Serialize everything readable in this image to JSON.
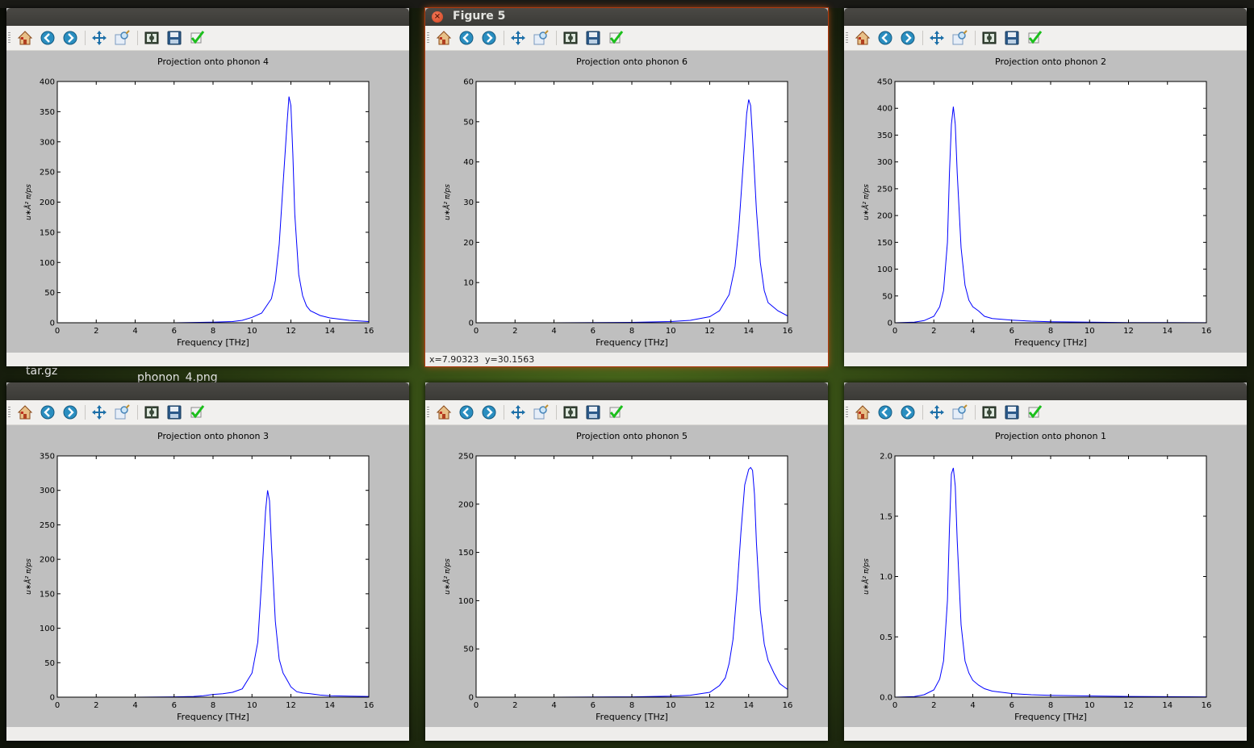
{
  "background": {
    "snippets": [
      "tar.gz",
      "phonon_4.png"
    ]
  },
  "icons": [
    "home-icon",
    "back-icon",
    "forward-icon",
    "pan-icon",
    "zoom-icon",
    "configure-subplots-icon",
    "save-icon",
    "edit-icon"
  ],
  "windows": [
    {
      "id": "w4",
      "title": "",
      "status_x": "",
      "status_y": "",
      "active": false
    },
    {
      "id": "w6",
      "title": "Figure 5",
      "status_x": "x=7.90323",
      "status_y": "y=30.1563",
      "active": true
    },
    {
      "id": "w2",
      "title": "",
      "status_x": "",
      "status_y": "",
      "active": false
    },
    {
      "id": "w3",
      "title": "",
      "status_x": "",
      "status_y": "",
      "active": false
    },
    {
      "id": "w5",
      "title": "",
      "status_x": "",
      "status_y": "",
      "active": false
    },
    {
      "id": "w1",
      "title": "",
      "status_x": "",
      "status_y": "",
      "active": false
    }
  ],
  "chart_data": [
    {
      "type": "line",
      "title": "Projection onto phonon 4",
      "xlabel": "Frequency [THz]",
      "ylabel": "u∗Å² π/ps",
      "xlim": [
        0,
        16
      ],
      "ylim": [
        0,
        400
      ],
      "xticks": [
        0,
        2,
        4,
        6,
        8,
        10,
        12,
        14,
        16
      ],
      "yticks": [
        0,
        50,
        100,
        150,
        200,
        250,
        300,
        350,
        400
      ],
      "ytick_labels": [
        "0",
        "50",
        "100",
        "150",
        "200",
        "250",
        "300",
        "350",
        "400"
      ],
      "color": "#0000ff",
      "x": [
        0,
        2,
        4,
        6,
        7,
        8,
        9,
        9.5,
        10,
        10.5,
        11,
        11.2,
        11.4,
        11.6,
        11.8,
        11.9,
        12,
        12.1,
        12.2,
        12.4,
        12.6,
        12.8,
        13,
        13.5,
        14,
        15,
        16
      ],
      "y": [
        0,
        0,
        0,
        0,
        0.5,
        1,
        2,
        4,
        9,
        16,
        40,
        70,
        130,
        230,
        330,
        375,
        360,
        280,
        180,
        80,
        45,
        28,
        20,
        12,
        8,
        4,
        2
      ]
    },
    {
      "type": "line",
      "title": "Projection onto phonon 6",
      "xlabel": "Frequency [THz]",
      "ylabel": "u∗Å² π/ps",
      "xlim": [
        0,
        16
      ],
      "ylim": [
        0,
        60
      ],
      "xticks": [
        0,
        2,
        4,
        6,
        8,
        10,
        12,
        14,
        16
      ],
      "yticks": [
        0,
        10,
        20,
        30,
        40,
        50,
        60
      ],
      "ytick_labels": [
        "0",
        "10",
        "20",
        "30",
        "40",
        "50",
        "60"
      ],
      "color": "#0000ff",
      "x": [
        0,
        4,
        8,
        10,
        11,
        12,
        12.5,
        13,
        13.3,
        13.5,
        13.7,
        13.9,
        14,
        14.1,
        14.2,
        14.4,
        14.6,
        14.8,
        15,
        15.5,
        16
      ],
      "y": [
        0,
        0,
        0.1,
        0.3,
        0.6,
        1.5,
        3,
        7,
        14,
        24,
        38,
        52,
        55.5,
        54,
        46,
        28,
        15,
        8,
        5,
        3,
        1.7
      ]
    },
    {
      "type": "line",
      "title": "Projection onto phonon 2",
      "xlabel": "Frequency [THz]",
      "ylabel": "u∗Å² π/ps",
      "xlim": [
        0,
        16
      ],
      "ylim": [
        0,
        450
      ],
      "xticks": [
        0,
        2,
        4,
        6,
        8,
        10,
        12,
        14,
        16
      ],
      "yticks": [
        0,
        50,
        100,
        150,
        200,
        250,
        300,
        350,
        400,
        450
      ],
      "ytick_labels": [
        "0",
        "50",
        "100",
        "150",
        "200",
        "250",
        "300",
        "350",
        "400",
        "450"
      ],
      "color": "#0000ff",
      "x": [
        0,
        1,
        1.5,
        2,
        2.3,
        2.5,
        2.7,
        2.8,
        2.9,
        3,
        3.1,
        3.2,
        3.4,
        3.6,
        3.8,
        4,
        4.3,
        4.6,
        5,
        6,
        7,
        8,
        10,
        12,
        14,
        16
      ],
      "y": [
        0,
        1,
        4,
        12,
        30,
        60,
        150,
        280,
        370,
        403,
        370,
        280,
        140,
        70,
        42,
        30,
        22,
        12,
        8,
        5,
        3,
        2,
        1,
        0.5,
        0.3,
        0.2
      ]
    },
    {
      "type": "line",
      "title": "Projection onto phonon 3",
      "xlabel": "Frequency [THz]",
      "ylabel": "u∗Å² π/ps",
      "xlim": [
        0,
        16
      ],
      "ylim": [
        0,
        350
      ],
      "xticks": [
        0,
        2,
        4,
        6,
        8,
        10,
        12,
        14,
        16
      ],
      "yticks": [
        0,
        50,
        100,
        150,
        200,
        250,
        300,
        350
      ],
      "ytick_labels": [
        "0",
        "50",
        "100",
        "150",
        "200",
        "250",
        "300",
        "350"
      ],
      "color": "#0000ff",
      "x": [
        0,
        4,
        6,
        7,
        7.5,
        8,
        8.5,
        9,
        9.5,
        10,
        10.3,
        10.5,
        10.7,
        10.8,
        10.9,
        11,
        11.2,
        11.4,
        11.6,
        11.8,
        12,
        12.3,
        12.6,
        13,
        13.5,
        14,
        15,
        16
      ],
      "y": [
        0,
        0,
        0.5,
        1,
        2,
        4,
        5,
        7,
        12,
        35,
        80,
        170,
        270,
        300,
        285,
        220,
        110,
        55,
        35,
        25,
        15,
        8,
        6,
        5,
        3,
        2,
        1.5,
        1
      ]
    },
    {
      "type": "line",
      "title": "Projection onto phonon 5",
      "xlabel": "Frequency [THz]",
      "ylabel": "u∗Å² π/ps",
      "xlim": [
        0,
        16
      ],
      "ylim": [
        0,
        250
      ],
      "xticks": [
        0,
        2,
        4,
        6,
        8,
        10,
        12,
        14,
        16
      ],
      "yticks": [
        0,
        50,
        100,
        150,
        200,
        250
      ],
      "ytick_labels": [
        "0",
        "50",
        "100",
        "150",
        "200",
        "250"
      ],
      "color": "#0000ff",
      "x": [
        0,
        4,
        8,
        10,
        11,
        12,
        12.5,
        12.8,
        13,
        13.2,
        13.4,
        13.6,
        13.8,
        14,
        14.1,
        14.2,
        14.3,
        14.4,
        14.6,
        14.8,
        15,
        15.3,
        15.6,
        16
      ],
      "y": [
        0,
        0,
        0.3,
        1,
        2,
        5,
        12,
        20,
        35,
        60,
        110,
        170,
        220,
        236,
        238,
        235,
        210,
        160,
        90,
        55,
        38,
        25,
        14,
        8
      ]
    },
    {
      "type": "line",
      "title": "Projection onto phonon 1",
      "xlabel": "Frequency [THz]",
      "ylabel": "u∗Å² π/ps",
      "xlim": [
        0,
        16
      ],
      "ylim": [
        0,
        2.0
      ],
      "xticks": [
        0,
        2,
        4,
        6,
        8,
        10,
        12,
        14,
        16
      ],
      "yticks": [
        0,
        0.5,
        1.0,
        1.5,
        2.0
      ],
      "ytick_labels": [
        "0.0",
        "0.5",
        "1.0",
        "1.5",
        "2.0"
      ],
      "color": "#0000ff",
      "x": [
        0,
        1,
        1.5,
        2,
        2.3,
        2.5,
        2.7,
        2.8,
        2.9,
        3,
        3.1,
        3.2,
        3.4,
        3.6,
        3.8,
        4,
        4.3,
        4.6,
        5,
        6,
        7,
        8,
        10,
        12,
        14,
        16
      ],
      "y": [
        0,
        0.005,
        0.02,
        0.06,
        0.15,
        0.3,
        0.8,
        1.4,
        1.85,
        1.9,
        1.75,
        1.3,
        0.6,
        0.3,
        0.2,
        0.14,
        0.1,
        0.07,
        0.05,
        0.03,
        0.02,
        0.015,
        0.01,
        0.006,
        0.004,
        0.003
      ]
    }
  ]
}
